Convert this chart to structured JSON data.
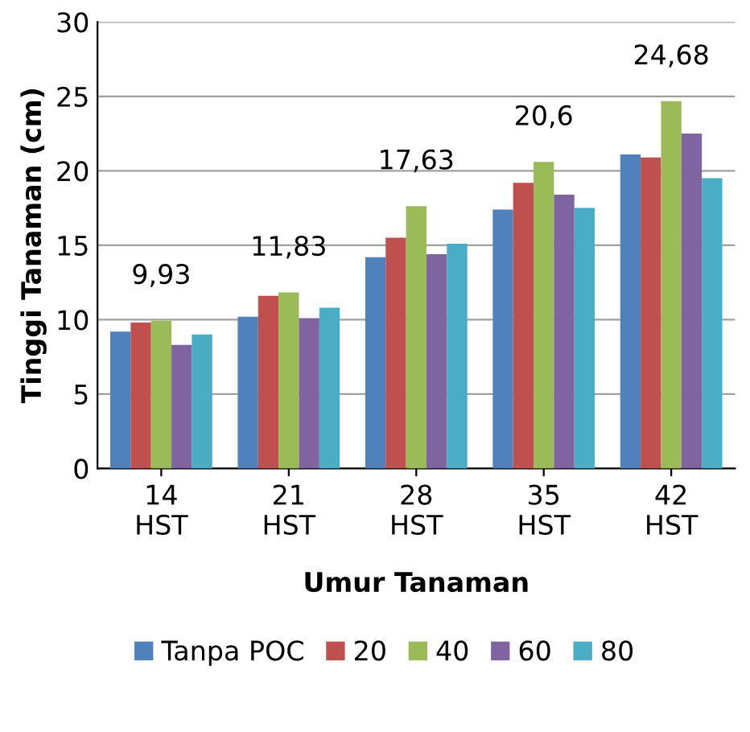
{
  "chart_data": {
    "type": "bar",
    "xlabel": "Umur Tanaman",
    "ylabel": "Tinggi Tanaman (cm)",
    "categories": [
      "14\nHST",
      "21\nHST",
      "28\nHST",
      "35\nHST",
      "42\nHST"
    ],
    "series": [
      {
        "name": "Tanpa POC",
        "color": "#4f81bd",
        "values": [
          9.2,
          10.2,
          14.2,
          17.4,
          21.1
        ]
      },
      {
        "name": "20",
        "color": "#c0504d",
        "values": [
          9.8,
          11.6,
          15.5,
          19.2,
          20.9
        ]
      },
      {
        "name": "40",
        "color": "#9bbb59",
        "values": [
          9.93,
          11.83,
          17.63,
          20.6,
          24.68
        ],
        "value_labels": [
          "9,93",
          "11,83",
          "17,63",
          "20,6",
          "24,68"
        ]
      },
      {
        "name": "60",
        "color": "#8064a2",
        "values": [
          8.3,
          10.1,
          14.4,
          18.4,
          22.5
        ]
      },
      {
        "name": "80",
        "color": "#4bacc6",
        "values": [
          9.0,
          10.8,
          15.1,
          17.5,
          19.5
        ]
      }
    ],
    "ylim": [
      0,
      30
    ],
    "yticks": [
      0,
      5,
      10,
      15,
      20,
      25,
      30
    ],
    "grid": "y",
    "legend": "bottom"
  }
}
